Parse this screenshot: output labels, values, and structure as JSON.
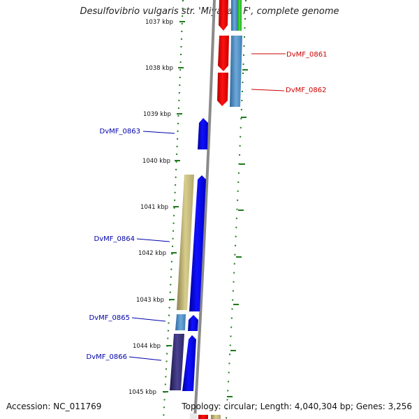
{
  "title": "Desulfovibrio vulgaris str. 'Miyazaki F', complete genome",
  "footer": {
    "accession": "Accession: NC_011769",
    "summary": "Topology: circular; Length: 4,040,304 bp; Genes: 3,256"
  },
  "axis": {
    "unit": "kbp",
    "ticks": [
      "1037 kbp",
      "1038 kbp",
      "1039 kbp",
      "1040 kbp",
      "1041 kbp",
      "1042 kbp",
      "1043 kbp",
      "1044 kbp",
      "1045 kbp"
    ]
  },
  "colors": {
    "forward_cds": "#0000ee",
    "reverse_cds": "#ee0000",
    "rna_tan": "#c8bc78",
    "blue_gray": "#4d8fc4",
    "purple": "#3c3478",
    "green": "#33cc33",
    "backbone": "#8a8a8a",
    "tick_green": "#1e7a1e",
    "label_blue": "#0000aa",
    "label_red": "#cc0000"
  },
  "genes": [
    {
      "id": "DvMF_0861",
      "label": "DvMF_0861",
      "side": "right",
      "color": "red"
    },
    {
      "id": "DvMF_0862",
      "label": "DvMF_0862",
      "side": "right",
      "color": "red"
    },
    {
      "id": "DvMF_0863",
      "label": "DvMF_0863",
      "side": "left",
      "color": "blue"
    },
    {
      "id": "DvMF_0864",
      "label": "DvMF_0864",
      "side": "left",
      "color": "blue"
    },
    {
      "id": "DvMF_0865",
      "label": "DvMF_0865",
      "side": "left",
      "color": "blue"
    },
    {
      "id": "DvMF_0866",
      "label": "DvMF_0866",
      "side": "left",
      "color": "blue"
    }
  ]
}
